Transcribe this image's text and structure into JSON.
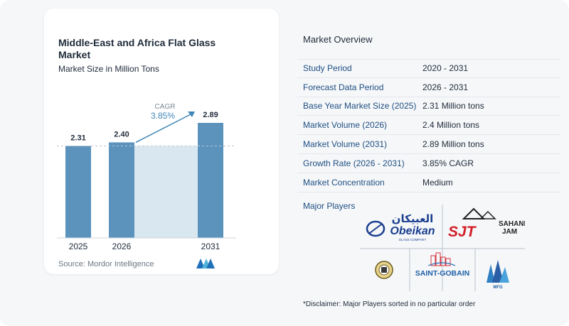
{
  "chart_data": {
    "type": "bar",
    "title": "Middle-East and Africa Flat Glass Market",
    "subtitle": "Market Size in Million Tons",
    "categories": [
      "2025",
      "2026",
      "2031"
    ],
    "values": [
      2.31,
      2.4,
      2.89
    ],
    "value_labels": [
      "2.31",
      "2.40",
      "2.89"
    ],
    "annotation": {
      "label": "CAGR",
      "value": "3.85%"
    },
    "colors": {
      "bar": "#5b93bd",
      "forecast_band": "#d9e7f1",
      "arrow": "#3f86b8",
      "cagr_text": "#3f86b8",
      "baseline": "#bcc7d1",
      "axis": "#cfd6dd"
    },
    "grid": false,
    "legend": "none"
  },
  "source": "Source:  Mordor Intelligence",
  "overview": {
    "title": "Market Overview",
    "rows": [
      {
        "label": "Study Period",
        "value": "2020 - 2031"
      },
      {
        "label": "Forecast Data Period",
        "value": "2026 - 2031"
      },
      {
        "label": "Base Year Market Size (2025)",
        "value": "2.31 Million tons"
      },
      {
        "label": "Market Volume (2026)",
        "value": "2.4 Million tons"
      },
      {
        "label": "Market Volume (2031)",
        "value": "2.89 Million tons"
      },
      {
        "label": "Growth Rate (2026 - 2031)",
        "value": "3.85% CAGR"
      },
      {
        "label": "Market Concentration",
        "value": "Medium"
      }
    ]
  },
  "players": {
    "title": "Major Players",
    "logos": {
      "obeikan": {
        "arabic": "العبيكان",
        "name": "Obeikan",
        "tagline": "GLASS COMPANY"
      },
      "sjt": {
        "mark": "SJT",
        "brand_top": "SAHAND",
        "brand_bottom": "JAM"
      },
      "saint_gobain": {
        "name": "SAINT-GOBAIN"
      },
      "mfg": {
        "name": "MFG"
      }
    }
  },
  "disclaimer": "*Disclaimer: Major Players sorted in no particular order"
}
